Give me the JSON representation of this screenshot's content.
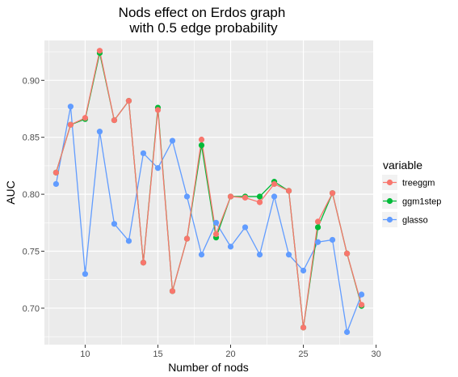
{
  "chart_data": {
    "type": "line",
    "title_lines": [
      "Nods effect on Erdos graph",
      "with 0.5 edge probability"
    ],
    "xlabel": "Number of nods",
    "ylabel": "AUC",
    "xlim": [
      7.2,
      29.8
    ],
    "ylim": [
      0.668,
      0.935
    ],
    "x_ticks": [
      10,
      15,
      20,
      25,
      30
    ],
    "y_ticks": [
      0.7,
      0.75,
      0.8,
      0.85,
      0.9
    ],
    "x_tick_labels": [
      "10",
      "15",
      "20",
      "25",
      "30"
    ],
    "y_tick_labels": [
      "0.70",
      "0.75",
      "0.80",
      "0.85",
      "0.90"
    ],
    "grid": true,
    "legend": {
      "title": "variable",
      "position": "right"
    },
    "x": [
      8,
      9,
      10,
      11,
      12,
      13,
      14,
      15,
      16,
      17,
      18,
      19,
      20,
      21,
      22,
      23,
      24,
      25,
      26,
      27,
      28,
      29
    ],
    "series": [
      {
        "name": "treeggm",
        "color": "#F8766D",
        "values": [
          0.819,
          0.861,
          0.867,
          0.926,
          0.865,
          0.882,
          0.74,
          0.874,
          0.715,
          0.761,
          0.848,
          0.765,
          0.798,
          0.797,
          0.793,
          0.809,
          0.803,
          0.683,
          0.776,
          0.801,
          0.748,
          0.703
        ]
      },
      {
        "name": "ggm1step",
        "color": "#00BA38",
        "values": [
          0.819,
          0.861,
          0.866,
          0.924,
          0.865,
          0.882,
          0.74,
          0.876,
          0.715,
          0.761,
          0.843,
          0.762,
          0.798,
          0.798,
          0.798,
          0.811,
          0.803,
          0.683,
          0.771,
          0.801,
          0.748,
          0.702
        ]
      },
      {
        "name": "glasso",
        "color": "#619CFF",
        "values": [
          0.809,
          0.877,
          0.73,
          0.855,
          0.774,
          0.759,
          0.836,
          0.823,
          0.847,
          0.798,
          0.747,
          0.775,
          0.754,
          0.771,
          0.747,
          0.798,
          0.747,
          0.733,
          0.758,
          0.76,
          0.679,
          0.712
        ]
      }
    ]
  }
}
